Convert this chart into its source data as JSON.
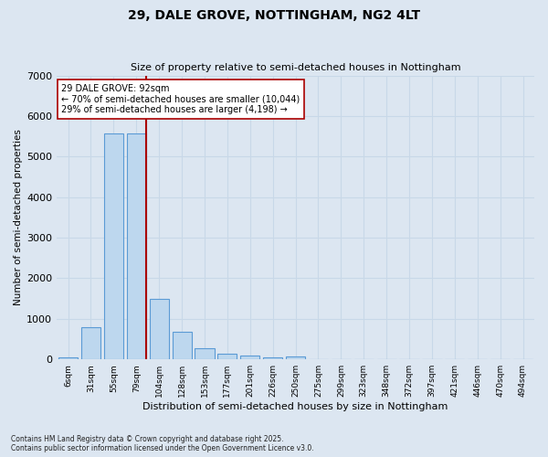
{
  "title": "29, DALE GROVE, NOTTINGHAM, NG2 4LT",
  "subtitle": "Size of property relative to semi-detached houses in Nottingham",
  "xlabel": "Distribution of semi-detached houses by size in Nottingham",
  "ylabel": "Number of semi-detached properties",
  "categories": [
    "6sqm",
    "31sqm",
    "55sqm",
    "79sqm",
    "104sqm",
    "128sqm",
    "153sqm",
    "177sqm",
    "201sqm",
    "226sqm",
    "250sqm",
    "275sqm",
    "299sqm",
    "323sqm",
    "348sqm",
    "372sqm",
    "397sqm",
    "421sqm",
    "446sqm",
    "470sqm",
    "494sqm"
  ],
  "values": [
    50,
    800,
    5560,
    5560,
    1490,
    670,
    265,
    140,
    90,
    60,
    80,
    0,
    0,
    0,
    0,
    0,
    0,
    0,
    0,
    0,
    0
  ],
  "bar_color": "#bdd7ee",
  "bar_edge_color": "#5b9bd5",
  "grid_color": "#c8d8e8",
  "background_color": "#dce6f1",
  "property_bin_index": 3,
  "annotation_text": "29 DALE GROVE: 92sqm\n← 70% of semi-detached houses are smaller (10,044)\n29% of semi-detached houses are larger (4,198) →",
  "vline_color": "#aa0000",
  "footer_line1": "Contains HM Land Registry data © Crown copyright and database right 2025.",
  "footer_line2": "Contains public sector information licensed under the Open Government Licence v3.0.",
  "ylim": [
    0,
    7000
  ],
  "yticks": [
    0,
    1000,
    2000,
    3000,
    4000,
    5000,
    6000,
    7000
  ]
}
